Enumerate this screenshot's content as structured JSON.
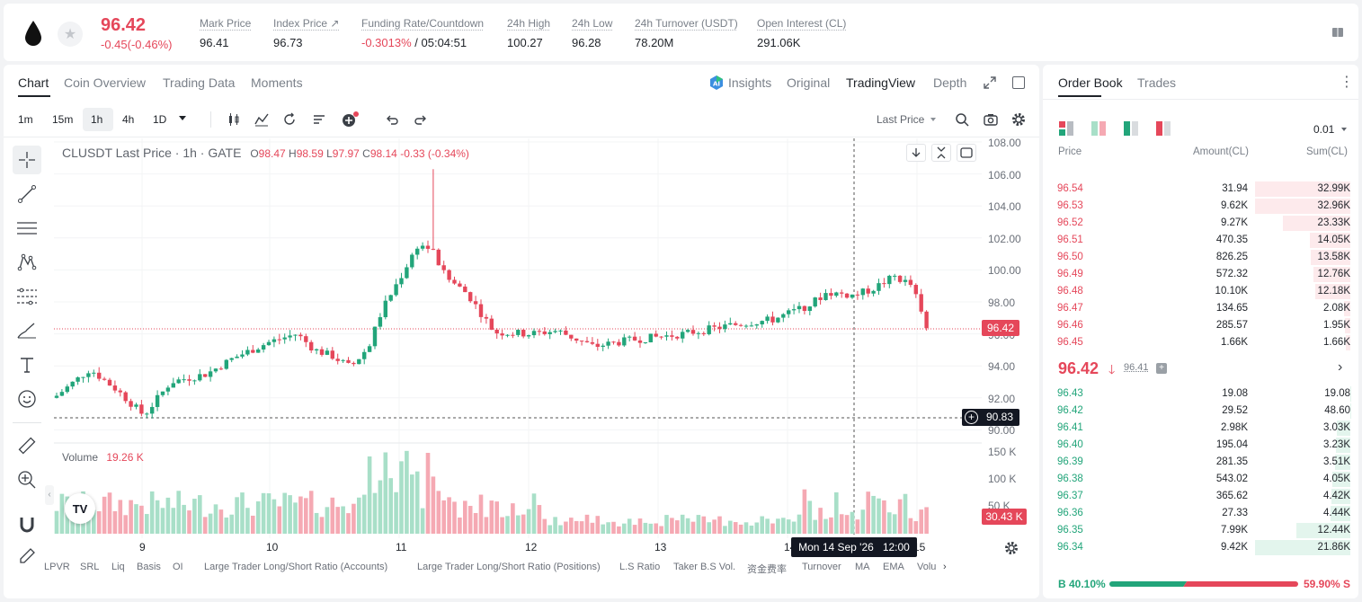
{
  "ticker": {
    "last_price": "96.42",
    "change": "-0.45(-0.46%)",
    "stats": [
      {
        "label": "Mark Price",
        "value": "96.41"
      },
      {
        "label": "Index Price ↗",
        "value": "96.73"
      },
      {
        "label": "Funding Rate/Countdown",
        "value_red": "-0.3013%",
        "value": "/ 05:04:51"
      },
      {
        "label": "24h High",
        "value": "100.27"
      },
      {
        "label": "24h Low",
        "value": "96.28"
      },
      {
        "label": "24h Turnover (USDT)",
        "value": "78.20M"
      },
      {
        "label": "Open Interest (CL)",
        "value": "291.06K"
      }
    ]
  },
  "chart_tabs": [
    "Chart",
    "Coin Overview",
    "Trading Data",
    "Moments"
  ],
  "view_tabs": {
    "insights": "Insights",
    "original": "Original",
    "tradingview": "TradingView",
    "depth": "Depth"
  },
  "timeframes": [
    "1m",
    "15m",
    "1h",
    "4h",
    "1D"
  ],
  "price_source": "Last Price",
  "legend": {
    "symbol": "CLUSDT Last Price · 1h · GATE",
    "o_lbl": "O",
    "o": "98.47",
    "h_lbl": "H",
    "h": "98.59",
    "l_lbl": "L",
    "l": "97.97",
    "c_lbl": "C",
    "c": "98.14",
    "chg": "-0.33 (-0.34%)"
  },
  "volume_legend": {
    "label": "Volume",
    "value": "19.26 K"
  },
  "price_axis": [
    "108.00",
    "106.00",
    "104.00",
    "102.00",
    "100.00",
    "98.00",
    "96.00",
    "94.00",
    "92.00",
    "90.00"
  ],
  "volume_axis": [
    "150 K",
    "100 K",
    "50 K"
  ],
  "last_price_tag": "96.42",
  "cursor_price_tag": "90.83",
  "volume_tag": "30.43 K",
  "x_labels": [
    "9",
    "10",
    "11",
    "12",
    "13",
    "14",
    "15"
  ],
  "crosshair_time": "Mon 14 Sep '26   12:00",
  "indicators": [
    "LPVR",
    "SRL",
    "Liq",
    "Basis",
    "OI",
    "Large Trader Long/Short Ratio (Accounts)",
    "Large Trader Long/Short Ratio (Positions)",
    "L.S Ratio",
    "Taker B.S Vol.",
    "资金费率",
    "Turnover",
    "MA",
    "EMA",
    "Volu"
  ],
  "logo_text": "TV",
  "orderbook": {
    "tabs": [
      "Order Book",
      "Trades"
    ],
    "precision": "0.01",
    "headers": [
      "Price",
      "Amount(CL)",
      "Sum(CL)"
    ],
    "asks": [
      {
        "price": "96.54",
        "amount": "31.94",
        "sum": "32.99K",
        "depth": 1.0
      },
      {
        "price": "96.53",
        "amount": "9.62K",
        "sum": "32.96K",
        "depth": 0.999
      },
      {
        "price": "96.52",
        "amount": "9.27K",
        "sum": "23.33K",
        "depth": 0.707
      },
      {
        "price": "96.51",
        "amount": "470.35",
        "sum": "14.05K",
        "depth": 0.426
      },
      {
        "price": "96.50",
        "amount": "826.25",
        "sum": "13.58K",
        "depth": 0.412
      },
      {
        "price": "96.49",
        "amount": "572.32",
        "sum": "12.76K",
        "depth": 0.387
      },
      {
        "price": "96.48",
        "amount": "10.10K",
        "sum": "12.18K",
        "depth": 0.369
      },
      {
        "price": "96.47",
        "amount": "134.65",
        "sum": "2.08K",
        "depth": 0.063
      },
      {
        "price": "96.46",
        "amount": "285.57",
        "sum": "1.95K",
        "depth": 0.059
      },
      {
        "price": "96.45",
        "amount": "1.66K",
        "sum": "1.66K",
        "depth": 0.05
      }
    ],
    "mid_price": "96.42",
    "mark_price": "96.41",
    "bids": [
      {
        "price": "96.43",
        "amount": "19.08",
        "sum": "19.08",
        "depth": 0.001
      },
      {
        "price": "96.42",
        "amount": "29.52",
        "sum": "48.60",
        "depth": 0.002
      },
      {
        "price": "96.41",
        "amount": "2.98K",
        "sum": "3.03K",
        "depth": 0.139
      },
      {
        "price": "96.40",
        "amount": "195.04",
        "sum": "3.23K",
        "depth": 0.148
      },
      {
        "price": "96.39",
        "amount": "281.35",
        "sum": "3.51K",
        "depth": 0.161
      },
      {
        "price": "96.38",
        "amount": "543.02",
        "sum": "4.05K",
        "depth": 0.185
      },
      {
        "price": "96.37",
        "amount": "365.62",
        "sum": "4.42K",
        "depth": 0.202
      },
      {
        "price": "96.36",
        "amount": "27.33",
        "sum": "4.44K",
        "depth": 0.203
      },
      {
        "price": "96.35",
        "amount": "7.99K",
        "sum": "12.44K",
        "depth": 0.57
      },
      {
        "price": "96.34",
        "amount": "9.42K",
        "sum": "21.86K",
        "depth": 1.0
      }
    ],
    "buy_ratio": "B 40.10%",
    "sell_ratio": "59.90% S",
    "buy_fraction": 0.401
  },
  "colors": {
    "up": "#22a57a",
    "down": "#e5475a",
    "up_vol": "#a8dfc8",
    "down_vol": "#f5a9b3"
  }
}
